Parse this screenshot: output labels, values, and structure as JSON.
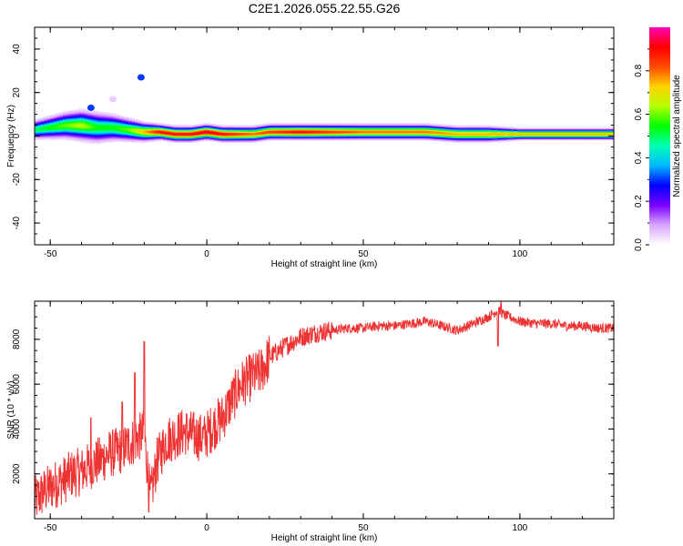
{
  "title": "C2E1.2026.055.22.55.G26",
  "chart_data": [
    {
      "type": "heatmap",
      "xlabel": "Height of straight line (km)",
      "ylabel": "Frequency (Hz)",
      "xlim": [
        -55,
        130
      ],
      "ylim": [
        -50,
        50
      ],
      "xticks": [
        -50,
        0,
        50,
        100
      ],
      "yticks": [
        -40,
        -20,
        0,
        20,
        40
      ],
      "colorbar": {
        "label": "Normalized spectral amplitude",
        "range": [
          0,
          1
        ],
        "ticks": [
          0.0,
          0.2,
          0.4,
          0.6,
          0.8
        ],
        "colors": [
          "#ffffff",
          "#d9a6ff",
          "#7a00ff",
          "#0000ff",
          "#00b7ff",
          "#00ffb4",
          "#00ff00",
          "#b4ff00",
          "#ffd200",
          "#ff4b00",
          "#ff0000",
          "#ff00b4"
        ]
      },
      "ridge": {
        "x": [
          -55,
          -50,
          -45,
          -40,
          -35,
          -30,
          -25,
          -20,
          -15,
          -10,
          -5,
          0,
          5,
          10,
          15,
          20,
          30,
          40,
          50,
          60,
          70,
          80,
          90,
          100,
          110,
          120,
          130
        ],
        "freq": [
          3,
          4,
          5,
          5,
          4,
          4,
          3,
          2,
          2,
          1,
          1,
          2,
          1,
          1,
          1,
          2,
          2,
          2,
          2,
          2,
          2,
          1,
          1,
          1,
          1,
          1,
          1
        ],
        "spread": [
          5,
          6,
          7,
          8,
          8,
          7,
          6,
          5,
          4,
          4,
          4,
          4,
          4,
          4,
          4,
          4,
          4,
          4,
          4,
          4,
          4,
          4,
          4,
          3,
          3,
          3,
          3
        ],
        "peak_amplitude": [
          0.5,
          0.55,
          0.6,
          0.65,
          0.55,
          0.55,
          0.6,
          0.75,
          0.9,
          0.9,
          0.9,
          0.95,
          0.9,
          0.85,
          0.8,
          0.85,
          0.9,
          0.85,
          0.8,
          0.8,
          0.8,
          0.75,
          0.75,
          0.75,
          0.75,
          0.75,
          0.75
        ]
      },
      "spots": [
        {
          "x": -21,
          "freq": 27,
          "amplitude": 0.3
        },
        {
          "x": -37,
          "freq": 13,
          "amplitude": 0.3
        },
        {
          "x": -30,
          "freq": 17,
          "amplitude": 0.05
        }
      ]
    },
    {
      "type": "line",
      "xlabel": "Height of straight line (km)",
      "ylabel": "SNR (10 * v/v)",
      "xlim": [
        -55,
        130
      ],
      "ylim": [
        0,
        9700
      ],
      "xticks": [
        -50,
        0,
        50,
        100
      ],
      "yticks": [
        2000,
        4000,
        6000,
        8000
      ],
      "color": "#ee3333",
      "x": [
        -55,
        -52,
        -49,
        -46,
        -43,
        -40,
        -37,
        -34,
        -31,
        -28,
        -25,
        -22,
        -20,
        -18,
        -16,
        -13,
        -10,
        -7,
        -4,
        -1,
        2,
        5,
        8,
        11,
        14,
        17,
        20,
        25,
        30,
        35,
        40,
        45,
        50,
        55,
        60,
        65,
        70,
        75,
        80,
        85,
        90,
        93,
        95,
        100,
        105,
        110,
        115,
        120,
        125,
        130
      ],
      "values": [
        800,
        1200,
        1500,
        1700,
        2000,
        2100,
        2400,
        2600,
        2900,
        3000,
        3300,
        3600,
        3800,
        900,
        2500,
        3500,
        3700,
        3900,
        3700,
        3600,
        4100,
        4500,
        5300,
        6000,
        6300,
        6500,
        7200,
        7700,
        8100,
        8300,
        8400,
        8500,
        8500,
        8600,
        8600,
        8700,
        8800,
        8600,
        8400,
        8700,
        9000,
        9300,
        9100,
        8800,
        8700,
        8700,
        8600,
        8600,
        8500,
        8500
      ],
      "spikes": [
        {
          "x": -20,
          "value": 7900
        },
        {
          "x": -23,
          "value": 6500
        },
        {
          "x": -27,
          "value": 5200
        },
        {
          "x": -37,
          "value": 4500
        },
        {
          "x": -18.5,
          "value": 300
        },
        {
          "x": 94,
          "value": 9700
        },
        {
          "x": 93,
          "value": 7700
        }
      ]
    }
  ]
}
